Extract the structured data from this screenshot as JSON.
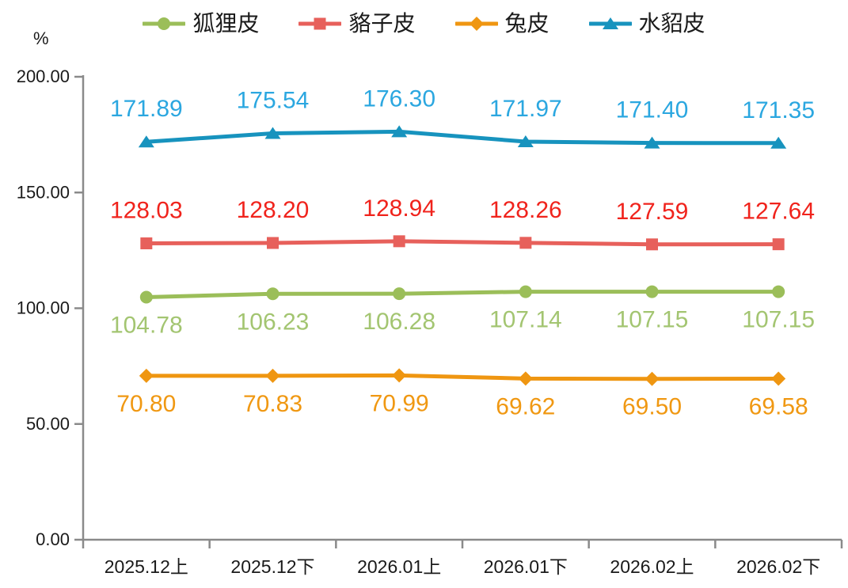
{
  "chart_data": {
    "type": "line",
    "unit_label": "%",
    "categories": [
      "2025.12上",
      "2025.12下",
      "2026.01上",
      "2026.01下",
      "2026.02上",
      "2026.02下"
    ],
    "series": [
      {
        "name": "狐狸皮",
        "marker": "circle",
        "line_color": "#9BBE59",
        "label_color": "#A3C571",
        "label_position": "below",
        "values": [
          104.78,
          106.23,
          106.28,
          107.14,
          107.15,
          107.15
        ]
      },
      {
        "name": "貉子皮",
        "marker": "square",
        "line_color": "#E7605B",
        "label_color": "#F0231C",
        "label_position": "above",
        "values": [
          128.03,
          128.2,
          128.94,
          128.26,
          127.59,
          127.64
        ]
      },
      {
        "name": "兔皮",
        "marker": "diamond",
        "line_color": "#EF9611",
        "label_color": "#F09812",
        "label_position": "below",
        "values": [
          70.8,
          70.83,
          70.99,
          69.62,
          69.5,
          69.58
        ]
      },
      {
        "name": "水貂皮",
        "marker": "triangle",
        "line_color": "#1793BE",
        "label_color": "#2BA7E0",
        "label_position": "above",
        "values": [
          171.89,
          175.54,
          176.3,
          171.97,
          171.4,
          171.35
        ]
      }
    ],
    "ylim": [
      0,
      200
    ],
    "yticks": [
      0,
      50,
      100,
      150,
      200
    ],
    "ytick_labels": [
      "0.00",
      "50.00",
      "100.00",
      "150.00",
      "200.00"
    ],
    "value_decimals": 2,
    "grid": false,
    "legend_position": "top",
    "axis_color": "#8A8A8A",
    "text_color": "#1A1A1A"
  }
}
